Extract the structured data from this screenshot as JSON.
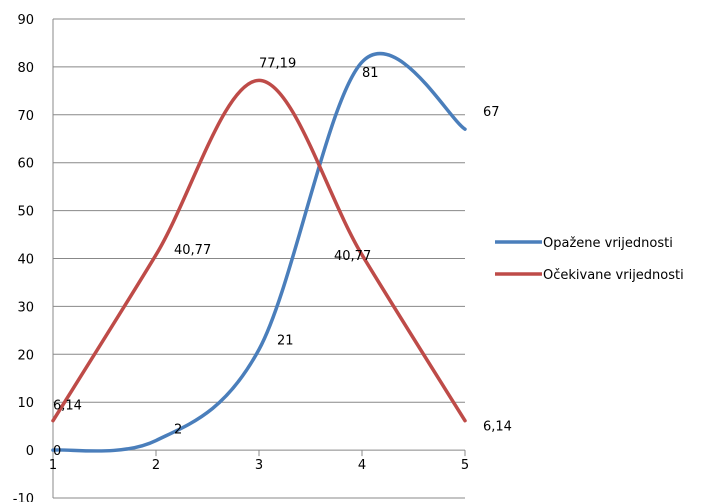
{
  "chart_data": {
    "type": "line",
    "x": [
      1,
      2,
      3,
      4,
      5
    ],
    "xlim": [
      1,
      5
    ],
    "ylim": [
      -10,
      90
    ],
    "y_ticks": [
      -10,
      0,
      10,
      20,
      30,
      40,
      50,
      60,
      70,
      80,
      90
    ],
    "x_ticks": [
      1,
      2,
      3,
      4,
      5
    ],
    "grid": "horizontal",
    "smooth": true,
    "legend_position": "right",
    "series": [
      {
        "name": "Opažene vrijednosti",
        "color": "#4a7ebb",
        "values": [
          0,
          2,
          21,
          81,
          67
        ],
        "labels": [
          "0",
          "2",
          "21",
          "81",
          "67"
        ]
      },
      {
        "name": "Očekivane vrijednosti",
        "color": "#be4b48",
        "values": [
          6.14,
          40.77,
          77.19,
          40.77,
          6.14
        ],
        "labels": [
          "6,14",
          "40,77",
          "77,19",
          "40,77",
          "6,14"
        ]
      }
    ]
  }
}
